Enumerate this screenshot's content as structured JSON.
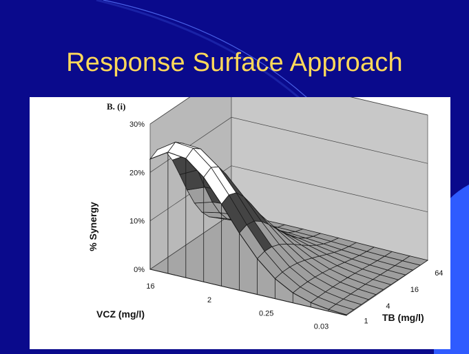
{
  "slide": {
    "title": "Response Surface Approach",
    "background_color": "#0a0a8c",
    "title_color": "#ffd95a",
    "accent_color": "#2f5bff"
  },
  "chart_data": {
    "type": "surface",
    "panel_label": "B. (i)",
    "zlabel": "% Synergy",
    "xlabel": "VCZ (mg/l)",
    "ylabel": "TB (mg/l)",
    "z_ticks": [
      "0%",
      "10%",
      "20%",
      "30%"
    ],
    "zlim": [
      0,
      30
    ],
    "vcz_ticks": [
      "16",
      "2",
      "0.25",
      "0.03"
    ],
    "tb_ticks": [
      "1",
      "4",
      "16",
      "64"
    ],
    "band_colors": {
      "0-10": "#9e9e9e",
      "10-20": "#444444",
      "20-30": "#ffffff"
    },
    "peak": {
      "value": 26,
      "vcz": "16",
      "tb": "1"
    }
  }
}
